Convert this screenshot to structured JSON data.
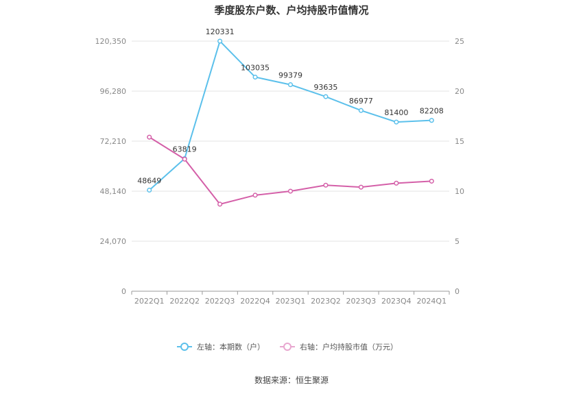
{
  "chart_data": {
    "type": "line",
    "title": "季度股东户数、户均持股市值情况",
    "categories": [
      "2022Q1",
      "2022Q2",
      "2022Q3",
      "2022Q4",
      "2023Q1",
      "2023Q2",
      "2023Q3",
      "2023Q4",
      "2024Q1"
    ],
    "left_axis": {
      "min": 0,
      "max": 120350,
      "ticks": [
        "0",
        "24,070",
        "48,140",
        "72,210",
        "96,280",
        "120,350"
      ]
    },
    "right_axis": {
      "min": 0,
      "max": 25,
      "ticks": [
        "0",
        "5",
        "10",
        "15",
        "20",
        "25"
      ]
    },
    "series": [
      {
        "name": "左轴：本期数（户）",
        "axis": "left",
        "color": "#5bc0eb",
        "values": [
          48649,
          63819,
          120331,
          103035,
          99379,
          93635,
          86977,
          81400,
          82208
        ],
        "labels": [
          "48649",
          "63819",
          "120331",
          "103035",
          "99379",
          "93635",
          "86977",
          "81400",
          "82208"
        ]
      },
      {
        "name": "右轴：户均持股市值（万元）",
        "axis": "right",
        "color": "#d45fa8",
        "values": [
          15.4,
          13.2,
          8.7,
          9.6,
          10.0,
          10.6,
          10.4,
          10.8,
          11.0
        ]
      }
    ],
    "grid": true,
    "legend_position": "bottom"
  },
  "source": "数据来源：恒生聚源"
}
